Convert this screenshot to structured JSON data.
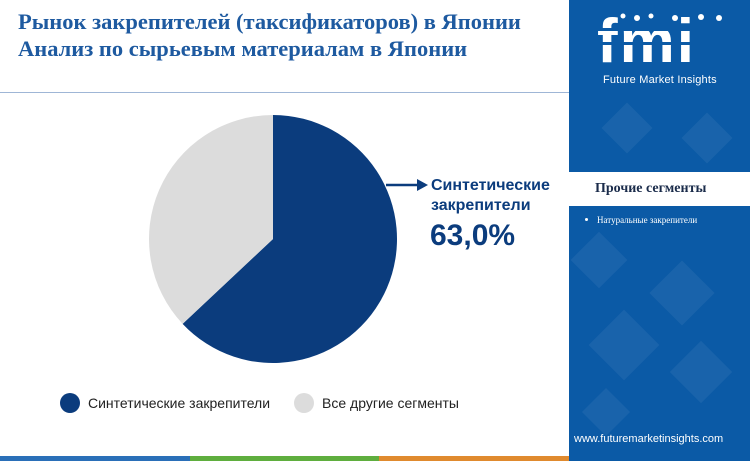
{
  "header": {
    "title_line1": "Рынок закрепителей (таксификаторов) в Японии",
    "title_line2": "Анализ по сырьевым материалам в Японии"
  },
  "brand": {
    "logo_text": "fmi",
    "tagline": "Future Market Insights",
    "url": "www.futuremarketinsights.com"
  },
  "side_panel": {
    "heading": "Прочие сегменты",
    "items": [
      "Натуральные закрепители"
    ]
  },
  "callout": {
    "label": "Синтетические закрепители",
    "value": "63,0%"
  },
  "colors": {
    "primary": "#0b3c7d",
    "secondary": "#dcdcdc",
    "panel": "#0b5aa6",
    "title": "#1e5aa0"
  },
  "chart_data": {
    "type": "pie",
    "title": "",
    "slices": [
      {
        "name": "Синтетические закрепители",
        "value": 63.0,
        "color": "#0b3c7d"
      },
      {
        "name": "Все другие сегменты",
        "value": 37.0,
        "color": "#dcdcdc"
      }
    ],
    "legend_position": "bottom"
  }
}
